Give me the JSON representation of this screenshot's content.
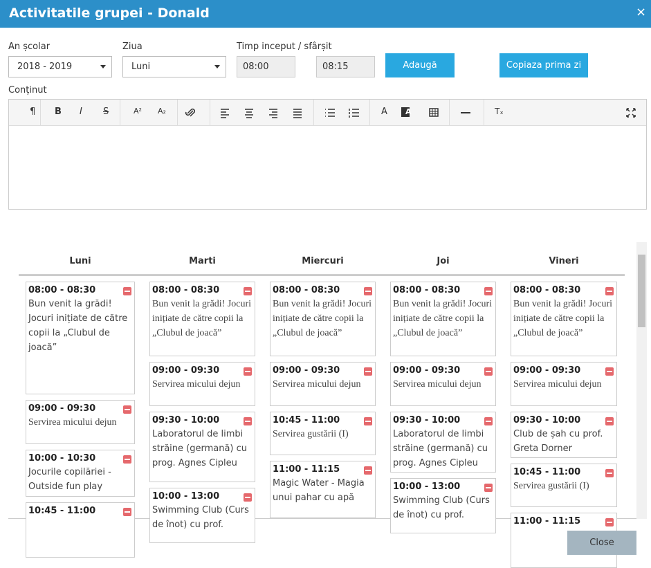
{
  "header": {
    "title": "Activitatile grupei - Donald",
    "close": "×"
  },
  "form": {
    "year_label": "An școlar",
    "year_value": "2018 - 2019",
    "day_label": "Ziua",
    "day_value": "Luni",
    "time_label": "Timp inceput / sfârșit",
    "start": "08:00",
    "end": "08:15",
    "add_button": "Adaugă",
    "copy_button": "Copiaza prima zi",
    "content_label": "Conținut"
  },
  "toolbar": [
    "¶",
    "B",
    "I",
    "S",
    "A²",
    "A₂",
    "A",
    "A",
    "Tₓ"
  ],
  "days": [
    {
      "name": "Luni",
      "entries": [
        {
          "time": "08:00 - 08:30",
          "text": "Bun venit la grădi! Jocuri inițiate de către copii la „Clubul de joacă”"
        },
        {
          "time": "09:00 - 09:30",
          "text": "Servirea micului dejun"
        },
        {
          "time": "10:00 - 10:30",
          "text": "Jocurile copilăriei - Outside fun play"
        },
        {
          "time": "10:45 - 11:00"
        }
      ]
    },
    {
      "name": "Marti",
      "entries": [
        {
          "time": "08:00 - 08:30",
          "text": "Bun venit la grădi! Jocuri inițiate de către copii la „Clubul de joacă”"
        },
        {
          "time": "09:00 - 09:30",
          "text": "Servirea micului dejun"
        },
        {
          "time": "09:30 - 10:00",
          "text": "Laboratorul de limbi străine (germană) cu prog. Agnes Cipleu"
        },
        {
          "time": "10:00 - 13:00",
          "text": "Swimming Club (Curs de înot) cu prof."
        }
      ]
    },
    {
      "name": "Miercuri",
      "entries": [
        {
          "time": "08:00 - 08:30",
          "text": "Bun venit la grădi! Jocuri inițiate de către copii la „Clubul de joacă”"
        },
        {
          "time": "09:00 - 09:30",
          "text": "Servirea micului dejun"
        },
        {
          "time": "10:45 - 11:00",
          "text": "Servirea gustării (I)"
        },
        {
          "time": "11:00 - 11:15",
          "text": "Magic Water - Magia unui pahar cu apă"
        }
      ]
    },
    {
      "name": "Joi",
      "entries": [
        {
          "time": "08:00 - 08:30",
          "text": "Bun venit la grădi! Jocuri inițiate de către copii la „Clubul de joacă”"
        },
        {
          "time": "09:00 - 09:30",
          "text": "Servirea micului dejun"
        },
        {
          "time": "09:30 - 10:00",
          "text": "Laboratorul de limbi străine (germană) cu prog. Agnes Cipleu"
        },
        {
          "time": "10:00 - 13:00",
          "text": "Swimming Club (Curs de înot) cu prof."
        }
      ]
    },
    {
      "name": "Vineri",
      "entries": [
        {
          "time": "08:00 - 08:30",
          "text": "Bun venit la grădi! Jocuri inițiate de către copii la „Clubul de joacă”"
        },
        {
          "time": "09:00 - 09:30",
          "text": "Servirea micului dejun"
        },
        {
          "time": "09:30 - 10:00",
          "text": "Club de șah cu prof. Greta Dorner"
        },
        {
          "time": "10:45 - 11:00",
          "text": "Servirea gustării (I)"
        },
        {
          "time": "11:00 - 11:15"
        }
      ]
    }
  ],
  "footer": {
    "close_button": "Close"
  }
}
